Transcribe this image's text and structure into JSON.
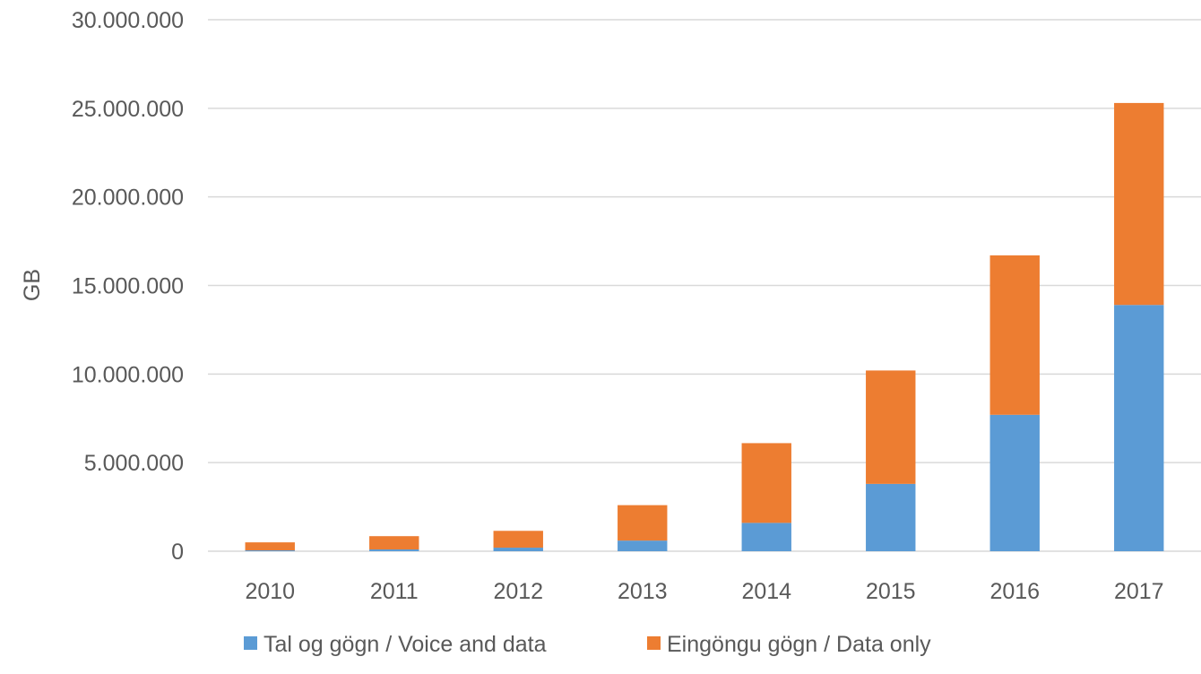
{
  "chart_data": {
    "type": "bar",
    "stacked": true,
    "title": "",
    "xlabel": "",
    "ylabel": "GB",
    "categories": [
      "2010",
      "2011",
      "2012",
      "2013",
      "2014",
      "2015",
      "2016",
      "2017"
    ],
    "series": [
      {
        "name": "Tal og gögn / Voice and data",
        "color": "#5B9BD5",
        "values": [
          50000,
          100000,
          200000,
          600000,
          1600000,
          3800000,
          7700000,
          13900000
        ]
      },
      {
        "name": "Eingöngu gögn / Data only",
        "color": "#ED7D31",
        "values": [
          450000,
          750000,
          950000,
          2000000,
          4500000,
          6400000,
          9000000,
          11400000
        ]
      }
    ],
    "ylim": [
      0,
      30000000
    ],
    "yticks": [
      0,
      5000000,
      10000000,
      15000000,
      20000000,
      25000000,
      30000000
    ],
    "ytick_labels": [
      "0",
      "5.000.000",
      "10.000.000",
      "15.000.000",
      "20.000.000",
      "25.000.000",
      "30.000.000"
    ],
    "grid": true,
    "legend_position": "bottom",
    "colors": {
      "grid": "#D9D9D9",
      "text": "#595959"
    }
  }
}
